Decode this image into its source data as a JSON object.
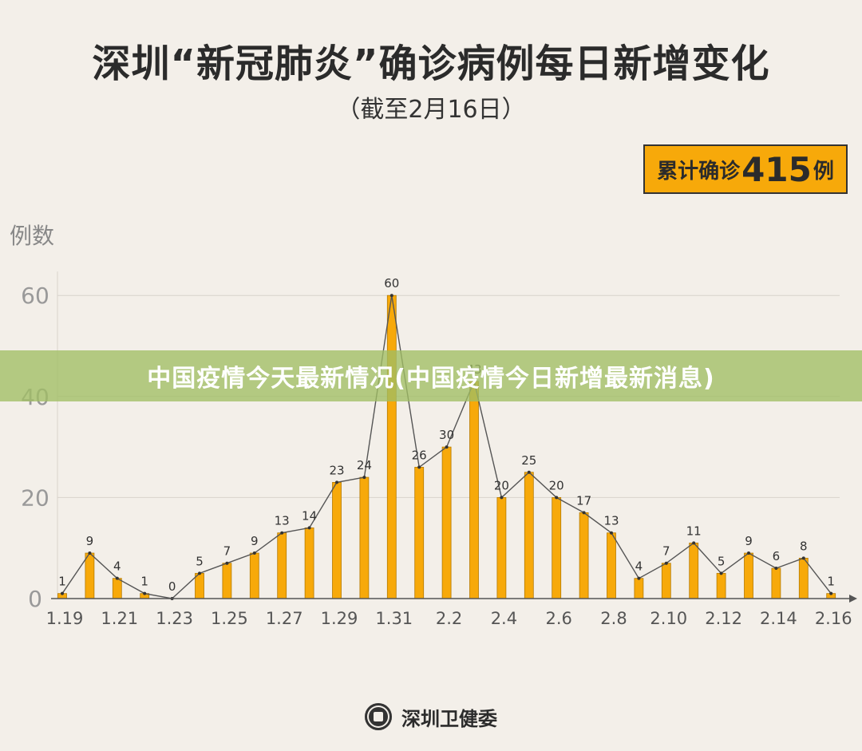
{
  "header": {
    "title": "深圳“新冠肺炎”确诊病例每日新增变化",
    "subtitle": "（截至2月16日）"
  },
  "total_box": {
    "label": "累计确诊",
    "value": "415",
    "unit": "例"
  },
  "banner": {
    "text": "中国疫情今天最新情况(中国疫情今日新增最新消息)"
  },
  "footer": {
    "org": "深圳卫健委"
  },
  "colors": {
    "background": "#f3efe9",
    "bar": "#f7a90a",
    "line": "#555555",
    "box": "#f7a90a",
    "banner": "#a0be64"
  },
  "chart_data": {
    "type": "bar",
    "title": "深圳“新冠肺炎”确诊病例每日新增变化",
    "subtitle": "（截至2月16日）",
    "ylabel": "例数",
    "xlabel": "",
    "ylim": [
      0,
      60
    ],
    "yticks": [
      0,
      20,
      40,
      60
    ],
    "grid": true,
    "categories": [
      "1.19",
      "1.20",
      "1.21",
      "1.22",
      "1.23",
      "1.24",
      "1.25",
      "1.26",
      "1.27",
      "1.28",
      "1.29",
      "1.30",
      "1.31",
      "2.1",
      "2.2",
      "2.3",
      "2.4",
      "2.5",
      "2.6",
      "2.7",
      "2.8",
      "2.9",
      "2.10",
      "2.11",
      "2.12",
      "2.13",
      "2.14",
      "2.15",
      "2.16"
    ],
    "tick_labels": [
      "1.19",
      "1.21",
      "1.23",
      "1.25",
      "1.27",
      "1.29",
      "1.31",
      "2.2",
      "2.4",
      "2.6",
      "2.8",
      "2.10",
      "2.12",
      "2.14",
      "2.16"
    ],
    "values": [
      1,
      9,
      4,
      1,
      0,
      5,
      7,
      9,
      13,
      14,
      23,
      24,
      60,
      26,
      30,
      43,
      20,
      25,
      20,
      17,
      13,
      4,
      7,
      11,
      5,
      9,
      6,
      8,
      1
    ],
    "overlay": "line"
  }
}
